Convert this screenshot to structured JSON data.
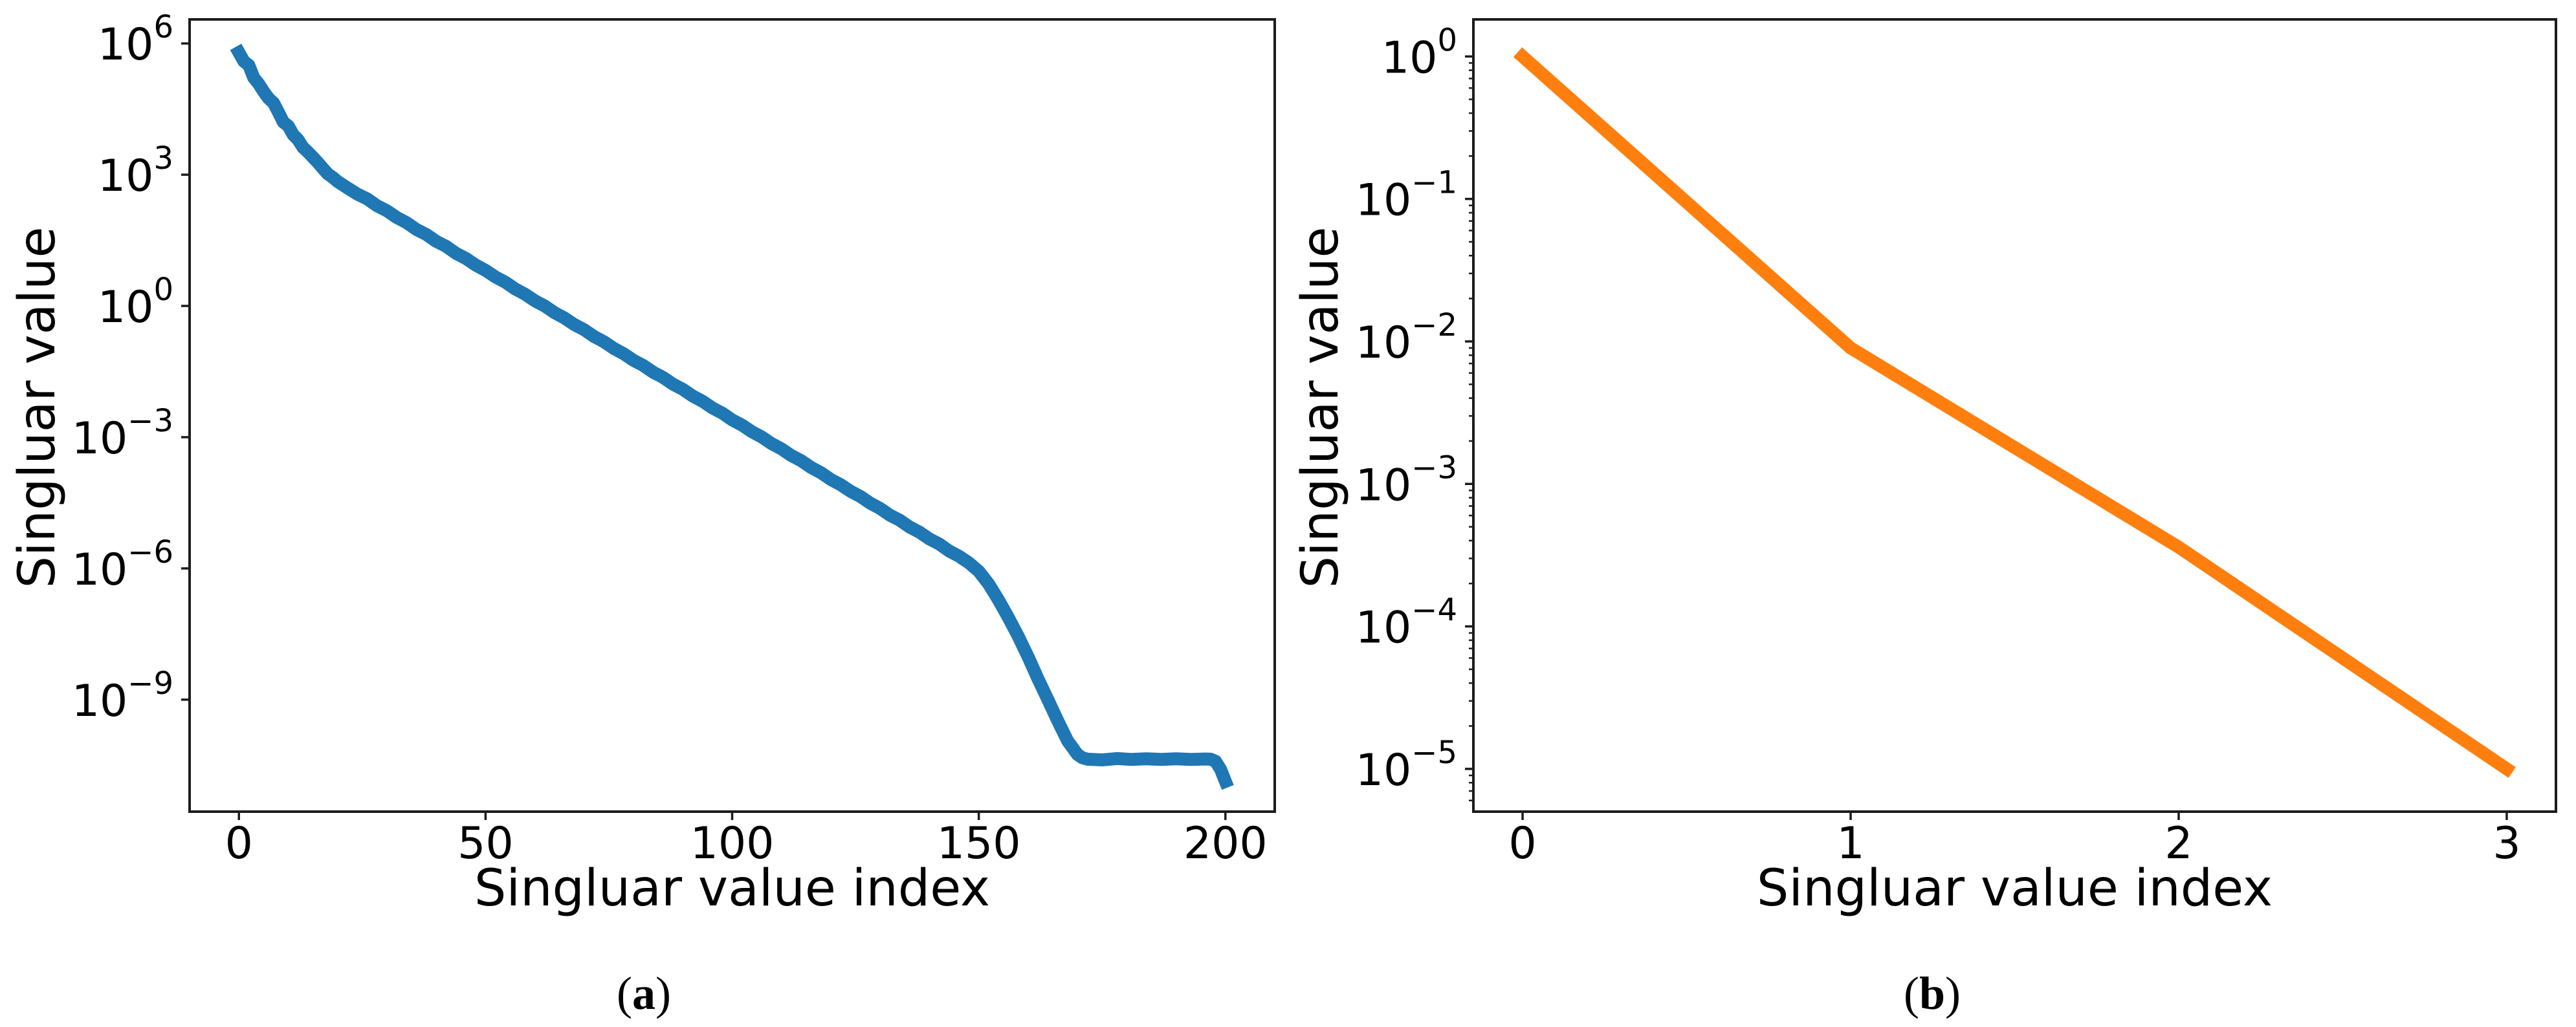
{
  "figure": {
    "background": "#ffffff",
    "spine_color": "#1c1c1c",
    "tick_color": "#1c1c1c",
    "text_color": "#000000"
  },
  "chart_data": [
    {
      "type": "line",
      "panel": "a",
      "caption_open": "(",
      "caption_letter": "a",
      "caption_close": ")",
      "xlabel": "Singluar value index",
      "ylabel": "Singluar value",
      "xscale": "linear",
      "yscale": "log",
      "grid": false,
      "legend": null,
      "line_color": "#1f77b4",
      "line_width": 20,
      "xticks": [
        0,
        50,
        100,
        150,
        200
      ],
      "ytick_exponents": [
        6,
        3,
        0,
        -3,
        -6,
        -9
      ],
      "xlim": [
        -10,
        210
      ],
      "ylim_exponents": [
        -11.56,
        6.55
      ],
      "minor_ticks": false,
      "points": [
        [
          0,
          620000.0
        ],
        [
          1,
          390000.0
        ],
        [
          2,
          320000.0
        ],
        [
          3,
          165000.0
        ],
        [
          4,
          120000.0
        ],
        [
          5,
          80000.0
        ],
        [
          6,
          56000.0
        ],
        [
          7,
          44000.0
        ],
        [
          8,
          27000.0
        ],
        [
          9,
          16000.0
        ],
        [
          10,
          13000.0
        ],
        [
          11,
          8200.0
        ],
        [
          12,
          6300.0
        ],
        [
          13,
          4200.0
        ],
        [
          14,
          3300.0
        ],
        [
          15,
          2500.0
        ],
        [
          16,
          1900.0
        ],
        [
          17,
          1400.0
        ],
        [
          18,
          1050.0
        ],
        [
          19,
          870.0
        ],
        [
          20,
          700.0
        ],
        [
          22,
          500.0
        ],
        [
          24,
          360.0
        ],
        [
          26,
          280.0
        ],
        [
          28,
          195.0
        ],
        [
          30,
          150.0
        ],
        [
          32,
          105.0
        ],
        [
          34,
          80.0
        ],
        [
          36,
          56.0
        ],
        [
          38,
          43.0
        ],
        [
          40,
          30.0
        ],
        [
          42,
          23.0
        ],
        [
          44,
          16.0
        ],
        [
          46,
          12.2
        ],
        [
          48,
          8.6
        ],
        [
          50,
          6.5
        ],
        [
          52,
          4.6
        ],
        [
          54,
          3.5
        ],
        [
          56,
          2.45
        ],
        [
          58,
          1.86
        ],
        [
          60,
          1.31
        ],
        [
          62,
          1.0
        ],
        [
          64,
          0.7
        ],
        [
          66,
          0.53
        ],
        [
          68,
          0.375
        ],
        [
          70,
          0.285
        ],
        [
          72,
          0.2
        ],
        [
          74,
          0.152
        ],
        [
          76,
          0.107
        ],
        [
          78,
          0.081
        ],
        [
          80,
          0.057
        ],
        [
          82,
          0.0435
        ],
        [
          84,
          0.0305
        ],
        [
          86,
          0.0232
        ],
        [
          88,
          0.0163
        ],
        [
          90,
          0.0124
        ],
        [
          92,
          0.0087
        ],
        [
          94,
          0.0066
        ],
        [
          96,
          0.00465
        ],
        [
          98,
          0.00354
        ],
        [
          100,
          0.00248
        ],
        [
          102,
          0.00189
        ],
        [
          104,
          0.00133
        ],
        [
          106,
          0.00101
        ],
        [
          108,
          0.00071
        ],
        [
          110,
          0.00054
        ],
        [
          112,
          0.00038
        ],
        [
          114,
          0.000289
        ],
        [
          116,
          0.000203
        ],
        [
          118,
          0.000154
        ],
        [
          120,
          0.000108
        ],
        [
          122,
          8.2e-05
        ],
        [
          124,
          5.8e-05
        ],
        [
          126,
          4.4e-05
        ],
        [
          128,
          3.1e-05
        ],
        [
          130,
          2.35e-05
        ],
        [
          132,
          1.65e-05
        ],
        [
          134,
          1.26e-05
        ],
        [
          136,
          8.8e-06
        ],
        [
          138,
          6.7e-06
        ],
        [
          140,
          4.7e-06
        ],
        [
          142,
          3.6e-06
        ],
        [
          144,
          2.5e-06
        ],
        [
          146,
          1.9e-06
        ],
        [
          148,
          1.34e-06
        ],
        [
          150,
          8.6e-07
        ],
        [
          152,
          4.4e-07
        ],
        [
          154,
          1.9e-07
        ],
        [
          156,
          7.5e-08
        ],
        [
          158,
          2.8e-08
        ],
        [
          160,
          9.5e-09
        ],
        [
          162,
          3e-09
        ],
        [
          164,
          1e-09
        ],
        [
          166,
          3.3e-10
        ],
        [
          168,
          1.15e-10
        ],
        [
          170,
          5.6e-11
        ],
        [
          171,
          4.7e-11
        ],
        [
          172,
          4.35e-11
        ],
        [
          175,
          4.2e-11
        ],
        [
          178,
          4.5e-11
        ],
        [
          181,
          4.3e-11
        ],
        [
          184,
          4.45e-11
        ],
        [
          187,
          4.3e-11
        ],
        [
          190,
          4.45e-11
        ],
        [
          193,
          4.3e-11
        ],
        [
          196,
          4.4e-11
        ],
        [
          197,
          4.35e-11
        ],
        [
          198,
          3.9e-11
        ],
        [
          199,
          2.6e-11
        ],
        [
          200,
          1.35e-11
        ]
      ]
    },
    {
      "type": "line",
      "panel": "b",
      "caption_open": "(",
      "caption_letter": "b",
      "caption_close": ")",
      "xlabel": "Singluar value index",
      "ylabel": "Singluar value",
      "xscale": "linear",
      "yscale": "log",
      "grid": false,
      "legend": null,
      "line_color": "#ff7f0e",
      "line_width": 20,
      "xticks": [
        0,
        1,
        2,
        3
      ],
      "ytick_exponents": [
        0,
        -1,
        -2,
        -3,
        -4,
        -5
      ],
      "xlim": [
        -0.15,
        3.15
      ],
      "ylim_exponents": [
        -5.3,
        0.26
      ],
      "minor_ticks": true,
      "points": [
        [
          0,
          1.0
        ],
        [
          1,
          0.009
        ],
        [
          2,
          0.00036
        ],
        [
          3,
          1e-05
        ]
      ]
    }
  ]
}
